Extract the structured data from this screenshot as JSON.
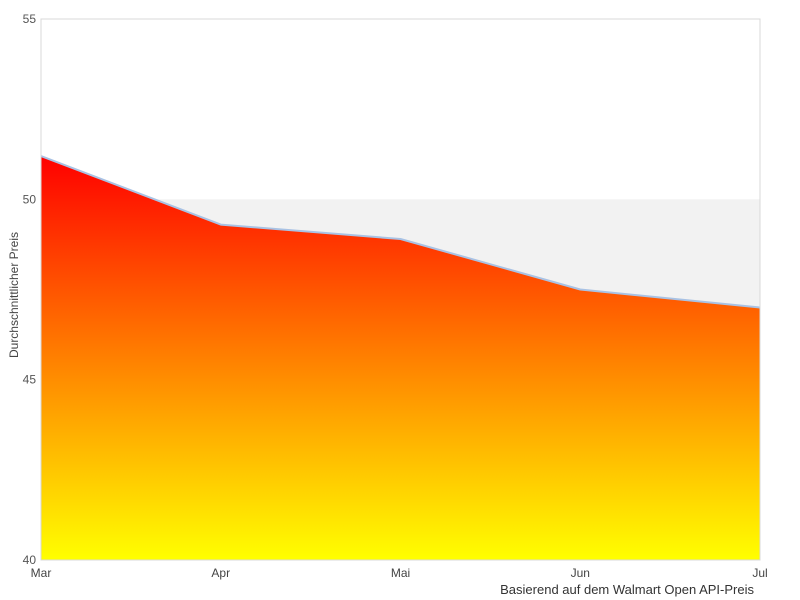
{
  "chart_data": {
    "type": "area",
    "categories": [
      "Mar",
      "Apr",
      "Mai",
      "Jun",
      "Jul"
    ],
    "values": [
      51.2,
      49.3,
      48.9,
      47.5,
      47.0
    ],
    "title": "",
    "xlabel": "",
    "ylabel": "Durchschnittlicher Preis",
    "caption": "Basierend auf dem Walmart Open API-Preis",
    "ylim": [
      40,
      55
    ],
    "yticks": [
      40,
      45,
      50,
      55
    ],
    "legend": "none",
    "grid": "alternating-band",
    "band": {
      "from": 45,
      "to": 50,
      "color": "#f2f2f2"
    },
    "colors": {
      "gradient_top": "#ff0000",
      "gradient_mid": "#ff8000",
      "gradient_bottom": "#ffff00",
      "line": "#a9c2e4",
      "plot_border": "#d8d8d8",
      "tick_label": "#555555",
      "axis_title": "#444444",
      "caption_text": "#333333",
      "background": "#ffffff"
    }
  }
}
